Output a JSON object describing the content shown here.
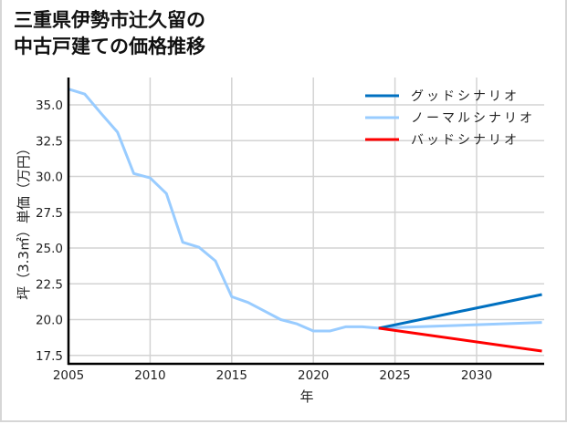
{
  "title": "三重県伊勢市辻久留の\n中古戸建ての価格推移",
  "chart_data": {
    "type": "line",
    "title": "三重県伊勢市辻久留の中古戸建ての価格推移",
    "xlabel": "年",
    "ylabel": "坪（3.3㎡）単価（万円）",
    "xlim": [
      2005,
      2034
    ],
    "ylim": [
      16.9,
      37.2
    ],
    "xticks": [
      2005,
      2010,
      2015,
      2020,
      2025,
      2030
    ],
    "xtick_labels": [
      "2005",
      "2010",
      "2015",
      "2020",
      "2025",
      "2030"
    ],
    "yticks": [
      17.5,
      20.0,
      22.5,
      25.0,
      27.5,
      30.0,
      32.5,
      35.0
    ],
    "ytick_labels": [
      "17.5",
      "20.0",
      "22.5",
      "25.0",
      "27.5",
      "30.0",
      "32.5",
      "35.0"
    ],
    "grid": true,
    "legend_position": "upper right",
    "series": [
      {
        "name": "グッドシナリオ",
        "color": "#0070c0",
        "x": [
          2024,
          2034
        ],
        "values": [
          19.4,
          21.75
        ]
      },
      {
        "name": "ノーマルシナリオ",
        "color": "#99ccff",
        "x": [
          2005,
          2006,
          2007,
          2008,
          2009,
          2010,
          2011,
          2012,
          2013,
          2014,
          2015,
          2016,
          2017,
          2018,
          2019,
          2020,
          2021,
          2022,
          2023,
          2024,
          2034
        ],
        "values": [
          36.1,
          35.75,
          34.4,
          33.1,
          30.2,
          29.9,
          28.8,
          25.4,
          25.05,
          24.1,
          21.6,
          21.2,
          20.6,
          20.0,
          19.7,
          19.2,
          19.2,
          19.5,
          19.5,
          19.4,
          19.8
        ]
      },
      {
        "name": "バッドシナリオ",
        "color": "#ff0000",
        "x": [
          2024,
          2034
        ],
        "values": [
          19.4,
          17.8
        ]
      }
    ]
  }
}
